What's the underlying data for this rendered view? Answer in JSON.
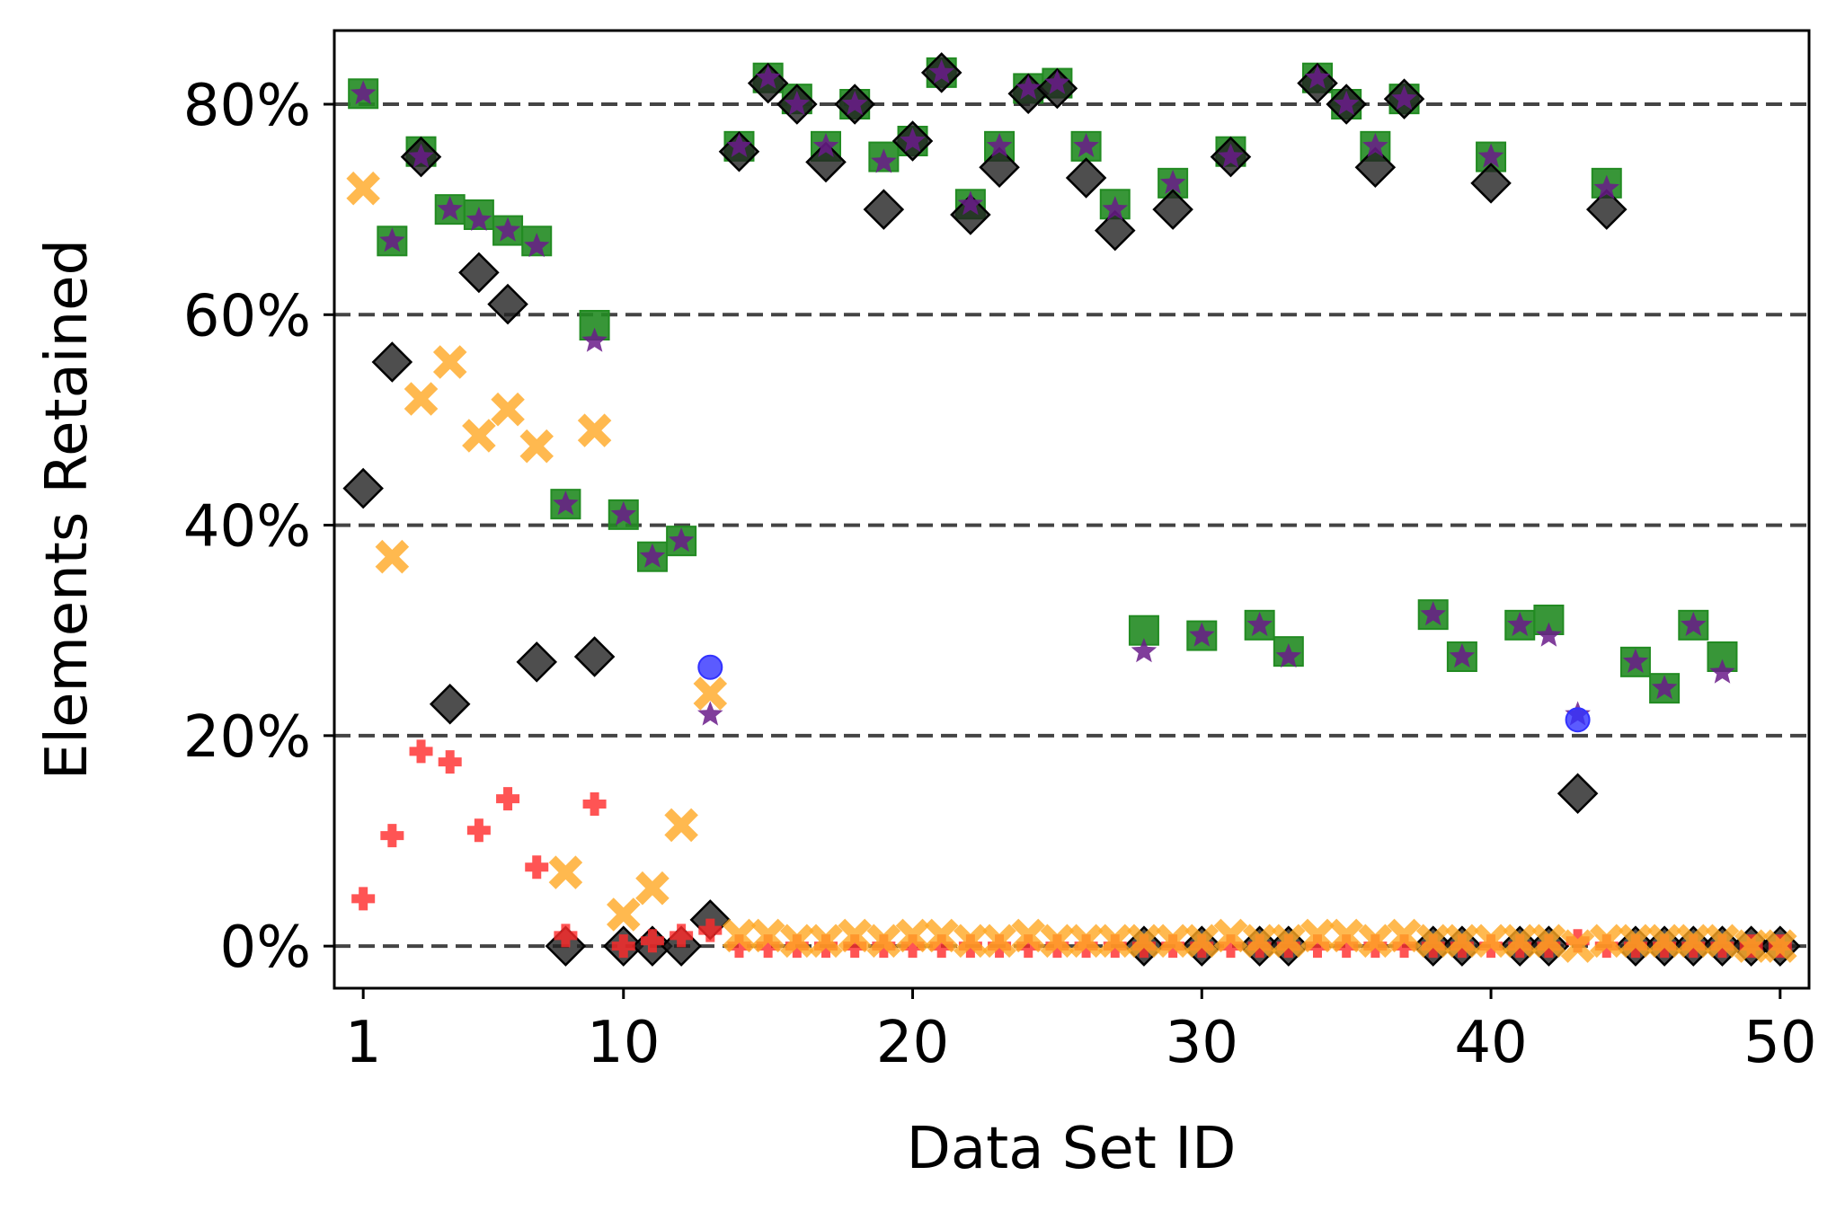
{
  "chart_data": {
    "type": "scatter",
    "title": "",
    "xlabel": "Data Set ID",
    "ylabel": "Elements Retained",
    "xlim": [
      0,
      51
    ],
    "ylim": [
      -4,
      87
    ],
    "x_ticks": [
      1,
      10,
      20,
      30,
      40,
      50
    ],
    "x_tick_labels": [
      "1",
      "10",
      "20",
      "30",
      "40",
      "50"
    ],
    "y_ticks": [
      0,
      20,
      40,
      60,
      80
    ],
    "y_tick_labels": [
      "0%",
      "20%",
      "40%",
      "60%",
      "80%"
    ],
    "grid": "horizontal dashed",
    "colors": {
      "green": "#228b22",
      "purple": "#6a1b8a",
      "black": "#222222",
      "orange": "#ffa824",
      "red": "#ff2a2a",
      "blue": "#3232ff",
      "gridline": "#444444"
    },
    "series": [
      {
        "name": "green-square",
        "marker": "square",
        "color": "#228b22",
        "points": [
          [
            1,
            81
          ],
          [
            2,
            67
          ],
          [
            3,
            75.5
          ],
          [
            4,
            70
          ],
          [
            5,
            69.5
          ],
          [
            6,
            68
          ],
          [
            7,
            67
          ],
          [
            8,
            42
          ],
          [
            9,
            59
          ],
          [
            10,
            41
          ],
          [
            11,
            37
          ],
          [
            12,
            38.5
          ],
          [
            14,
            76
          ],
          [
            15,
            82.5
          ],
          [
            16,
            80.5
          ],
          [
            17,
            76
          ],
          [
            18,
            80
          ],
          [
            19,
            75
          ],
          [
            20,
            76.5
          ],
          [
            21,
            83
          ],
          [
            22,
            70.5
          ],
          [
            23,
            76
          ],
          [
            24,
            81.5
          ],
          [
            25,
            82
          ],
          [
            26,
            76
          ],
          [
            27,
            70.5
          ],
          [
            28,
            30
          ],
          [
            29,
            72.5
          ],
          [
            30,
            29.5
          ],
          [
            31,
            75.5
          ],
          [
            32,
            30.5
          ],
          [
            33,
            28
          ],
          [
            34,
            82.5
          ],
          [
            35,
            80
          ],
          [
            36,
            76
          ],
          [
            37,
            80.5
          ],
          [
            38,
            31.5
          ],
          [
            39,
            27.5
          ],
          [
            40,
            75
          ],
          [
            41,
            30.5
          ],
          [
            42,
            31
          ],
          [
            44,
            72.5
          ],
          [
            45,
            27
          ],
          [
            46,
            24.5
          ],
          [
            47,
            30.5
          ],
          [
            48,
            27.5
          ]
        ]
      },
      {
        "name": "purple-star",
        "marker": "star",
        "color": "#6a1b8a",
        "points": [
          [
            1,
            81
          ],
          [
            2,
            67
          ],
          [
            3,
            75
          ],
          [
            4,
            70
          ],
          [
            5,
            69
          ],
          [
            6,
            68
          ],
          [
            7,
            66.5
          ],
          [
            8,
            42
          ],
          [
            9,
            57.5
          ],
          [
            10,
            41
          ],
          [
            11,
            37
          ],
          [
            12,
            38.5
          ],
          [
            13,
            22
          ],
          [
            14,
            76
          ],
          [
            15,
            82.5
          ],
          [
            16,
            80
          ],
          [
            17,
            76
          ],
          [
            18,
            80
          ],
          [
            19,
            74.5
          ],
          [
            20,
            76.5
          ],
          [
            21,
            83
          ],
          [
            22,
            70.5
          ],
          [
            23,
            76
          ],
          [
            24,
            81.5
          ],
          [
            25,
            82
          ],
          [
            26,
            76
          ],
          [
            27,
            70
          ],
          [
            28,
            28
          ],
          [
            29,
            72.5
          ],
          [
            30,
            29.5
          ],
          [
            31,
            75
          ],
          [
            32,
            30.5
          ],
          [
            33,
            27.5
          ],
          [
            34,
            82.5
          ],
          [
            35,
            80
          ],
          [
            36,
            76
          ],
          [
            37,
            80.5
          ],
          [
            38,
            31.5
          ],
          [
            39,
            27.5
          ],
          [
            40,
            75
          ],
          [
            41,
            30.5
          ],
          [
            42,
            29.5
          ],
          [
            43,
            22
          ],
          [
            44,
            72
          ],
          [
            45,
            27
          ],
          [
            46,
            24.5
          ],
          [
            47,
            30.5
          ],
          [
            48,
            26
          ]
        ]
      },
      {
        "name": "black-diamond",
        "marker": "diamond",
        "color": "#222222",
        "points": [
          [
            1,
            43.5
          ],
          [
            2,
            55.5
          ],
          [
            3,
            75
          ],
          [
            4,
            23
          ],
          [
            5,
            64
          ],
          [
            6,
            61
          ],
          [
            7,
            27
          ],
          [
            8,
            0
          ],
          [
            9,
            27.5
          ],
          [
            10,
            0
          ],
          [
            11,
            0
          ],
          [
            12,
            0
          ],
          [
            13,
            2.5
          ],
          [
            14,
            75.5
          ],
          [
            15,
            82
          ],
          [
            16,
            80
          ],
          [
            17,
            74.5
          ],
          [
            18,
            80
          ],
          [
            19,
            70
          ],
          [
            20,
            76.5
          ],
          [
            21,
            83
          ],
          [
            22,
            69.5
          ],
          [
            23,
            74
          ],
          [
            24,
            81
          ],
          [
            25,
            81.5
          ],
          [
            26,
            73
          ],
          [
            27,
            68
          ],
          [
            28,
            0
          ],
          [
            29,
            70
          ],
          [
            30,
            0
          ],
          [
            31,
            75
          ],
          [
            32,
            0
          ],
          [
            33,
            0
          ],
          [
            34,
            82
          ],
          [
            35,
            80
          ],
          [
            36,
            74
          ],
          [
            37,
            80.5
          ],
          [
            38,
            0
          ],
          [
            39,
            0
          ],
          [
            40,
            72.5
          ],
          [
            41,
            0
          ],
          [
            42,
            0
          ],
          [
            43,
            14.5
          ],
          [
            44,
            70
          ],
          [
            45,
            0
          ],
          [
            46,
            0
          ],
          [
            47,
            0
          ],
          [
            48,
            0
          ],
          [
            49,
            0
          ],
          [
            50,
            0
          ]
        ]
      },
      {
        "name": "orange-x",
        "marker": "x",
        "color": "#ffa824",
        "points": [
          [
            1,
            72
          ],
          [
            2,
            37
          ],
          [
            3,
            52
          ],
          [
            4,
            55.5
          ],
          [
            5,
            48.5
          ],
          [
            6,
            51
          ],
          [
            7,
            47.5
          ],
          [
            8,
            7
          ],
          [
            9,
            49
          ],
          [
            10,
            3
          ],
          [
            11,
            5.5
          ],
          [
            12,
            11.5
          ],
          [
            13,
            24
          ],
          [
            14,
            1
          ],
          [
            15,
            1
          ],
          [
            16,
            0.5
          ],
          [
            17,
            0.5
          ],
          [
            18,
            1
          ],
          [
            19,
            0.5
          ],
          [
            20,
            1
          ],
          [
            21,
            1
          ],
          [
            22,
            0.5
          ],
          [
            23,
            0.5
          ],
          [
            24,
            1
          ],
          [
            25,
            0.5
          ],
          [
            26,
            0.5
          ],
          [
            27,
            0.5
          ],
          [
            28,
            0.5
          ],
          [
            29,
            0.5
          ],
          [
            30,
            0.5
          ],
          [
            31,
            1
          ],
          [
            32,
            0.5
          ],
          [
            33,
            0.5
          ],
          [
            34,
            1
          ],
          [
            35,
            1
          ],
          [
            36,
            0.5
          ],
          [
            37,
            1
          ],
          [
            38,
            0.5
          ],
          [
            39,
            0.5
          ],
          [
            40,
            0.5
          ],
          [
            41,
            0.5
          ],
          [
            42,
            0.5
          ],
          [
            43,
            0
          ],
          [
            44,
            0.5
          ],
          [
            45,
            0.5
          ],
          [
            46,
            0.5
          ],
          [
            47,
            0.5
          ],
          [
            48,
            0.5
          ],
          [
            49,
            0
          ],
          [
            50,
            0
          ]
        ]
      },
      {
        "name": "red-plus",
        "marker": "plus",
        "color": "#ff2a2a",
        "points": [
          [
            1,
            4.5
          ],
          [
            2,
            10.5
          ],
          [
            3,
            18.5
          ],
          [
            4,
            17.5
          ],
          [
            5,
            11
          ],
          [
            6,
            14
          ],
          [
            7,
            7.5
          ],
          [
            8,
            1
          ],
          [
            9,
            13.5
          ],
          [
            10,
            0
          ],
          [
            11,
            0.5
          ],
          [
            12,
            1
          ],
          [
            13,
            1.5
          ],
          [
            14,
            0
          ],
          [
            15,
            0
          ],
          [
            16,
            0
          ],
          [
            17,
            0
          ],
          [
            18,
            0
          ],
          [
            19,
            0
          ],
          [
            20,
            0
          ],
          [
            21,
            0
          ],
          [
            22,
            0
          ],
          [
            23,
            0
          ],
          [
            24,
            0
          ],
          [
            25,
            0
          ],
          [
            26,
            0
          ],
          [
            27,
            0
          ],
          [
            28,
            0
          ],
          [
            29,
            0
          ],
          [
            30,
            0
          ],
          [
            31,
            0
          ],
          [
            32,
            0
          ],
          [
            33,
            0
          ],
          [
            34,
            0
          ],
          [
            35,
            0
          ],
          [
            36,
            0
          ],
          [
            37,
            0
          ],
          [
            38,
            0
          ],
          [
            39,
            0
          ],
          [
            40,
            0
          ],
          [
            41,
            0
          ],
          [
            42,
            0
          ],
          [
            43,
            0.5
          ],
          [
            44,
            0
          ],
          [
            45,
            0
          ],
          [
            46,
            0
          ],
          [
            47,
            0
          ],
          [
            48,
            0
          ],
          [
            49,
            0
          ],
          [
            50,
            0
          ]
        ]
      },
      {
        "name": "blue-circle",
        "marker": "circle",
        "color": "#3232ff",
        "points": [
          [
            13,
            26.5
          ],
          [
            43,
            21.5
          ]
        ]
      }
    ]
  }
}
